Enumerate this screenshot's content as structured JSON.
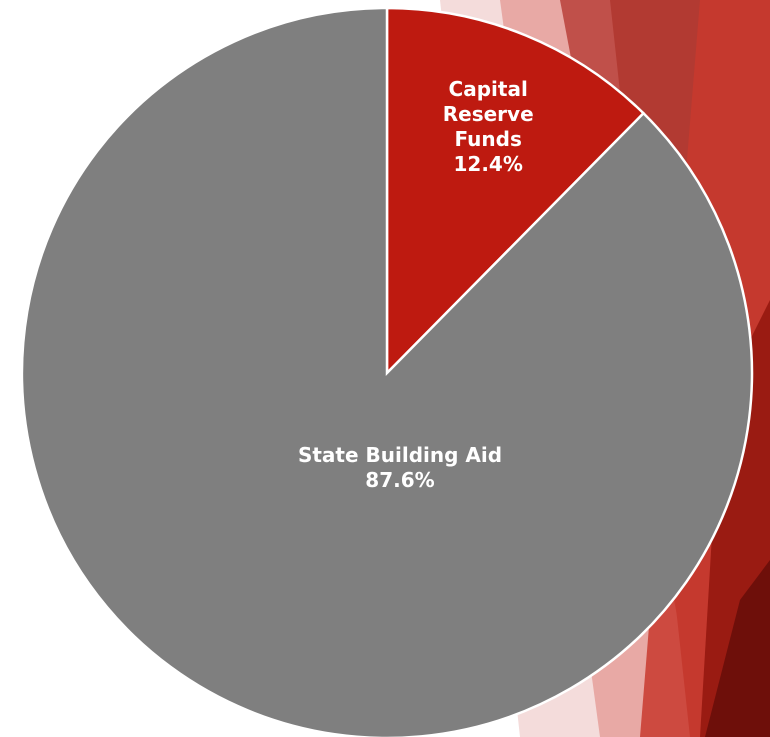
{
  "chart_data": {
    "type": "pie",
    "categories": [
      "Capital Reserve Funds",
      "State Building Aid"
    ],
    "values": [
      12.4,
      87.6
    ],
    "value_labels": [
      "12.4%",
      "87.6%"
    ],
    "colors": [
      "#be1a10",
      "#7f7f7f"
    ]
  }
}
